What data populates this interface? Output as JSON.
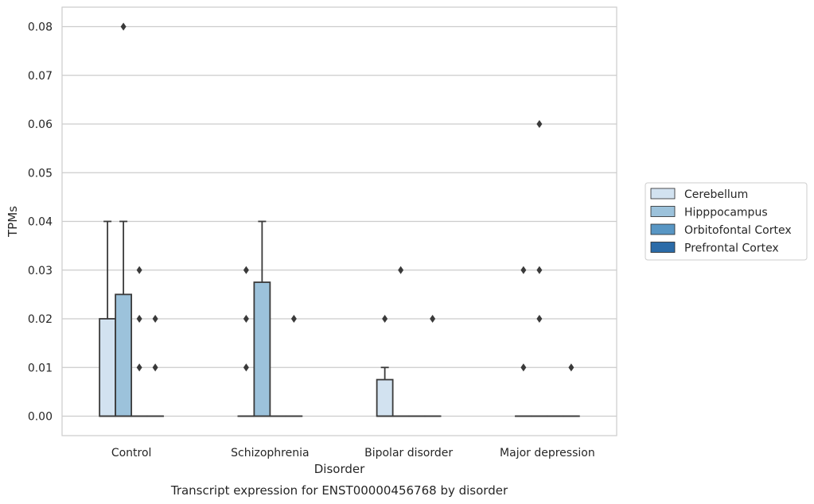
{
  "chart_data": {
    "type": "box",
    "title": "",
    "caption": "Transcript expression for ENST00000456768 by disorder",
    "xlabel": "Disorder",
    "ylabel": "TPMs",
    "ylim": [
      -0.004,
      0.084
    ],
    "yticks": [
      "0.00",
      "0.01",
      "0.02",
      "0.03",
      "0.04",
      "0.05",
      "0.06",
      "0.07",
      "0.08"
    ],
    "grid": "horizontal",
    "legend_position": "right",
    "categories": [
      "Control",
      "Schizophrenia",
      "Bipolar disorder",
      "Major depression"
    ],
    "series": [
      {
        "name": "Cerebellum",
        "color": "#d2e2f0",
        "boxes": [
          {
            "category": "Control",
            "q1": 0.0,
            "median": 0.0,
            "q3": 0.02,
            "whisker_low": 0.0,
            "whisker_high": 0.04,
            "outliers": []
          },
          {
            "category": "Schizophrenia",
            "q1": 0.0,
            "median": 0.0,
            "q3": 0.0,
            "whisker_low": 0.0,
            "whisker_high": 0.0,
            "outliers": [
              0.01,
              0.02,
              0.03
            ]
          },
          {
            "category": "Bipolar disorder",
            "q1": 0.0,
            "median": 0.0,
            "q3": 0.0075,
            "whisker_low": 0.0,
            "whisker_high": 0.01,
            "outliers": [
              0.02
            ]
          },
          {
            "category": "Major depression",
            "q1": 0.0,
            "median": 0.0,
            "q3": 0.0,
            "whisker_low": 0.0,
            "whisker_high": 0.0,
            "outliers": [
              0.01,
              0.03
            ]
          }
        ]
      },
      {
        "name": "Hipppocampus",
        "color": "#9cc2db",
        "boxes": [
          {
            "category": "Control",
            "q1": 0.0,
            "median": 0.0,
            "q3": 0.025,
            "whisker_low": 0.0,
            "whisker_high": 0.04,
            "outliers": [
              0.08
            ]
          },
          {
            "category": "Schizophrenia",
            "q1": 0.0,
            "median": 0.0,
            "q3": 0.0275,
            "whisker_low": 0.0,
            "whisker_high": 0.04,
            "outliers": []
          },
          {
            "category": "Bipolar disorder",
            "q1": 0.0,
            "median": 0.0,
            "q3": 0.0,
            "whisker_low": 0.0,
            "whisker_high": 0.0,
            "outliers": [
              0.03
            ]
          },
          {
            "category": "Major depression",
            "q1": 0.0,
            "median": 0.0,
            "q3": 0.0,
            "whisker_low": 0.0,
            "whisker_high": 0.0,
            "outliers": [
              0.02,
              0.03,
              0.06
            ]
          }
        ]
      },
      {
        "name": "Orbitofontal Cortex",
        "color": "#5896c4",
        "boxes": [
          {
            "category": "Control",
            "q1": 0.0,
            "median": 0.0,
            "q3": 0.0,
            "whisker_low": 0.0,
            "whisker_high": 0.0,
            "outliers": [
              0.01,
              0.02,
              0.03
            ]
          },
          {
            "category": "Schizophrenia",
            "q1": 0.0,
            "median": 0.0,
            "q3": 0.0,
            "whisker_low": 0.0,
            "whisker_high": 0.0,
            "outliers": []
          },
          {
            "category": "Bipolar disorder",
            "q1": 0.0,
            "median": 0.0,
            "q3": 0.0,
            "whisker_low": 0.0,
            "whisker_high": 0.0,
            "outliers": []
          },
          {
            "category": "Major depression",
            "q1": 0.0,
            "median": 0.0,
            "q3": 0.0,
            "whisker_low": 0.0,
            "whisker_high": 0.0,
            "outliers": []
          }
        ]
      },
      {
        "name": "Prefrontal Cortex",
        "color": "#2b6ba8",
        "boxes": [
          {
            "category": "Control",
            "q1": 0.0,
            "median": 0.0,
            "q3": 0.0,
            "whisker_low": 0.0,
            "whisker_high": 0.0,
            "outliers": [
              0.01,
              0.02
            ]
          },
          {
            "category": "Schizophrenia",
            "q1": 0.0,
            "median": 0.0,
            "q3": 0.0,
            "whisker_low": 0.0,
            "whisker_high": 0.0,
            "outliers": [
              0.02
            ]
          },
          {
            "category": "Bipolar disorder",
            "q1": 0.0,
            "median": 0.0,
            "q3": 0.0,
            "whisker_low": 0.0,
            "whisker_high": 0.0,
            "outliers": [
              0.02
            ]
          },
          {
            "category": "Major depression",
            "q1": 0.0,
            "median": 0.0,
            "q3": 0.0,
            "whisker_low": 0.0,
            "whisker_high": 0.0,
            "outliers": [
              0.01
            ]
          }
        ]
      }
    ]
  }
}
